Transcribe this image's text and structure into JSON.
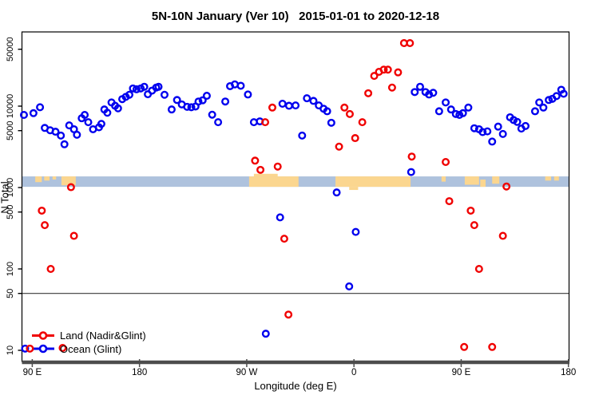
{
  "title": "5N-10N January (Ver 10)   2015-01-01 to 2020-12-18",
  "axes": {
    "x_label": "Longitude (deg E)",
    "y_label": "N Total",
    "x_ticks": [
      {
        "lon": 90,
        "label": "90 E"
      },
      {
        "lon": 180,
        "label": "180"
      },
      {
        "lon": 270,
        "label": "90 W"
      },
      {
        "lon": 360,
        "label": "0"
      },
      {
        "lon": 450,
        "label": "90 E"
      },
      {
        "lon": 540,
        "label": "180"
      }
    ],
    "y_ticks": [
      {
        "value": 10,
        "label": "10"
      },
      {
        "value": 50,
        "label": "50"
      },
      {
        "value": 100,
        "label": "100"
      },
      {
        "value": 500,
        "label": "500"
      },
      {
        "value": 1000,
        "label": "1000"
      },
      {
        "value": 5000,
        "label": "5000"
      },
      {
        "value": 10000,
        "label": "10000"
      },
      {
        "value": 50000,
        "label": "50000"
      }
    ]
  },
  "legend": {
    "land_label": "Land (Nadir&Glint)",
    "ocean_label": "Ocean (Glint)"
  },
  "colors": {
    "land": "#F00000",
    "ocean": "#0000EE",
    "band_ocean": "#AEC2DD",
    "band_land": "#FBD68F",
    "axis_heavy": "#4D4D4D",
    "box": "#000000",
    "reference_line": "#3A3A3A"
  },
  "chart_data": {
    "type": "scatter",
    "title": "5N-10N January (Ver 10)   2015-01-01 to 2020-12-18",
    "xlabel": "Longitude (deg E)",
    "ylabel": "N Total",
    "x_axis_deg_east_range": [
      81,
      541
    ],
    "y_axis_log_range": [
      7.5,
      85000
    ],
    "y_scale": "log10",
    "grid": "off",
    "legend_position": "bottom-left",
    "reference_line_y": 50,
    "land_ocean_band": {
      "value_range": [
        1020,
        1370
      ],
      "land_patches": [
        {
          "lon0": 92.5,
          "lon1": 98,
          "f0": 0,
          "f1": 0.55
        },
        {
          "lon0": 100,
          "lon1": 104.5,
          "f0": 0,
          "f1": 0.4
        },
        {
          "lon0": 107,
          "lon1": 110,
          "f0": 0,
          "f1": 0.3
        },
        {
          "lon0": 114.5,
          "lon1": 126.5,
          "f0": 0,
          "f1": 0.85
        },
        {
          "lon0": 272,
          "lon1": 313.5,
          "f0": 0,
          "f1": 1
        },
        {
          "lon0": 276,
          "lon1": 296,
          "f0": -0.25,
          "f1": 0
        },
        {
          "lon0": 344.5,
          "lon1": 407.5,
          "f0": 0,
          "f1": 1
        },
        {
          "lon0": 356,
          "lon1": 363.5,
          "f0": 1,
          "f1": 1.3
        },
        {
          "lon0": 433.5,
          "lon1": 437,
          "f0": 0,
          "f1": 0.5
        },
        {
          "lon0": 453,
          "lon1": 465,
          "f0": 0,
          "f1": 0.8
        },
        {
          "lon0": 466,
          "lon1": 470.5,
          "f0": 0.3,
          "f1": 1
        },
        {
          "lon0": 476,
          "lon1": 482,
          "f0": 0,
          "f1": 0.7
        },
        {
          "lon0": 520.5,
          "lon1": 525.5,
          "f0": 0,
          "f1": 0.4
        },
        {
          "lon0": 528,
          "lon1": 532,
          "f0": 0,
          "f1": 0.4
        }
      ]
    },
    "series": [
      {
        "name": "Ocean (Glint)",
        "color": "#0000EE",
        "points": [
          [
            83,
            7800
          ],
          [
            91,
            8200
          ],
          [
            96.5,
            9700
          ],
          [
            100.5,
            5400
          ],
          [
            105,
            5050
          ],
          [
            109.5,
            4850
          ],
          [
            114,
            4350
          ],
          [
            117,
            3400
          ],
          [
            121,
            5800
          ],
          [
            125,
            5200
          ],
          [
            127.5,
            4450
          ],
          [
            131.5,
            7100
          ],
          [
            134,
            7800
          ],
          [
            137,
            6350
          ],
          [
            141,
            5200
          ],
          [
            146,
            5500
          ],
          [
            148,
            6050
          ],
          [
            150.5,
            9100
          ],
          [
            153,
            8300
          ],
          [
            156.5,
            11100
          ],
          [
            159.5,
            10100
          ],
          [
            162,
            9400
          ],
          [
            165.5,
            12200
          ],
          [
            168.5,
            13000
          ],
          [
            171.5,
            13800
          ],
          [
            174.5,
            16500
          ],
          [
            177.5,
            16100
          ],
          [
            181,
            16500
          ],
          [
            184,
            17300
          ],
          [
            187,
            14000
          ],
          [
            190.5,
            15500
          ],
          [
            194,
            16900
          ],
          [
            196,
            17300
          ],
          [
            201,
            13800
          ],
          [
            207,
            9100
          ],
          [
            211.5,
            11900
          ],
          [
            215.5,
            10500
          ],
          [
            220,
            9800
          ],
          [
            223.5,
            9700
          ],
          [
            227,
            9900
          ],
          [
            229.5,
            11400
          ],
          [
            233,
            11800
          ],
          [
            236.5,
            13400
          ],
          [
            241,
            7850
          ],
          [
            246,
            6350
          ],
          [
            252,
            11400
          ],
          [
            256,
            17600
          ],
          [
            260,
            18500
          ],
          [
            265,
            17800
          ],
          [
            271,
            13900
          ],
          [
            276,
            6350
          ],
          [
            281,
            6500
          ],
          [
            286,
            16
          ],
          [
            298,
            430
          ],
          [
            300,
            10700
          ],
          [
            305.5,
            10100
          ],
          [
            311,
            10200
          ],
          [
            316.5,
            4350
          ],
          [
            320.5,
            12500
          ],
          [
            326,
            11600
          ],
          [
            330.5,
            10200
          ],
          [
            334.5,
            9300
          ],
          [
            337.5,
            8650
          ],
          [
            341,
            6250
          ],
          [
            345.5,
            870
          ],
          [
            356,
            61
          ],
          [
            361.5,
            285
          ],
          [
            408,
            1550
          ],
          [
            411,
            14900
          ],
          [
            415.5,
            17300
          ],
          [
            420,
            14900
          ],
          [
            423,
            13900
          ],
          [
            426.5,
            14600
          ],
          [
            431.5,
            8650
          ],
          [
            437,
            11100
          ],
          [
            441.5,
            9100
          ],
          [
            445.5,
            8000
          ],
          [
            448.5,
            7800
          ],
          [
            451.5,
            8200
          ],
          [
            456,
            9600
          ],
          [
            461,
            5350
          ],
          [
            465,
            5200
          ],
          [
            468,
            4800
          ],
          [
            472,
            4900
          ],
          [
            476,
            3670
          ],
          [
            481,
            5600
          ],
          [
            485,
            4550
          ],
          [
            491,
            7300
          ],
          [
            494,
            6750
          ],
          [
            497,
            6400
          ],
          [
            500.5,
            5300
          ],
          [
            504,
            5700
          ],
          [
            512,
            8650
          ],
          [
            515.5,
            11100
          ],
          [
            519,
            9600
          ],
          [
            523.5,
            11900
          ],
          [
            526.5,
            12300
          ],
          [
            530,
            13300
          ],
          [
            534,
            15900
          ],
          [
            536,
            14200
          ],
          [
            84,
            10.5
          ]
        ]
      },
      {
        "name": "Land (Nadir&Glint)",
        "color": "#F00000",
        "points": [
          [
            98,
            520
          ],
          [
            100.5,
            345
          ],
          [
            105.5,
            100
          ],
          [
            122.5,
            1010
          ],
          [
            125,
            255
          ],
          [
            277,
            2140
          ],
          [
            281.5,
            1650
          ],
          [
            296,
            1810
          ],
          [
            291.5,
            9600
          ],
          [
            285.5,
            6350
          ],
          [
            301.5,
            235
          ],
          [
            305,
            27.5
          ],
          [
            347.5,
            3180
          ],
          [
            352,
            9600
          ],
          [
            356.5,
            8000
          ],
          [
            361,
            4050
          ],
          [
            367,
            6350
          ],
          [
            372,
            14400
          ],
          [
            377,
            23500
          ],
          [
            381,
            26400
          ],
          [
            385,
            28100
          ],
          [
            388.5,
            28100
          ],
          [
            392,
            16900
          ],
          [
            397,
            26000
          ],
          [
            402,
            59500
          ],
          [
            407,
            59500
          ],
          [
            408.5,
            2400
          ],
          [
            437,
            2060
          ],
          [
            440,
            680
          ],
          [
            452.5,
            11
          ],
          [
            458,
            520
          ],
          [
            461,
            345
          ],
          [
            465,
            100
          ],
          [
            476,
            11
          ],
          [
            485,
            255
          ],
          [
            488,
            1030
          ],
          [
            88,
            10.5
          ],
          [
            115.5,
            10.7
          ]
        ]
      }
    ]
  }
}
